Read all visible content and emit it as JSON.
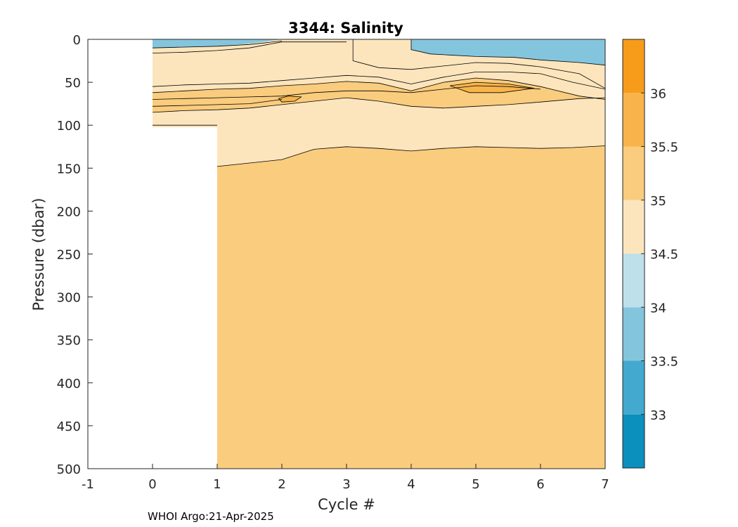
{
  "chart_data": {
    "type": "heatmap",
    "subtype": "filled-contour",
    "title": "3344:  Salinity",
    "xlabel": "Cycle #",
    "ylabel": "Pressure (dbar)",
    "xlim": [
      -1,
      7
    ],
    "ylim": [
      0,
      500
    ],
    "y_reversed": true,
    "xticks": [
      -1,
      0,
      1,
      2,
      3,
      4,
      5,
      6,
      7
    ],
    "yticks": [
      0,
      50,
      100,
      150,
      200,
      250,
      300,
      350,
      400,
      450,
      500
    ],
    "grid": false,
    "colorbar": {
      "range": [
        32.5,
        36.5
      ],
      "ticks": [
        "33",
        "33.5",
        "34",
        "34.5",
        "35",
        "35.5",
        "36"
      ],
      "bands": [
        {
          "from": 32.5,
          "to": 33.0,
          "color": "#0B8FBD"
        },
        {
          "from": 33.0,
          "to": 33.5,
          "color": "#43A9CF"
        },
        {
          "from": 33.5,
          "to": 34.0,
          "color": "#84C5DE"
        },
        {
          "from": 34.0,
          "to": 34.5,
          "color": "#BEE0EB"
        },
        {
          "from": 34.5,
          "to": 35.0,
          "color": "#FCE5BD"
        },
        {
          "from": 35.0,
          "to": 35.5,
          "color": "#FACC7D"
        },
        {
          "from": 35.5,
          "to": 36.0,
          "color": "#F8B44A"
        },
        {
          "from": 36.0,
          "to": 36.5,
          "color": "#F79C1A"
        }
      ]
    },
    "data_coverage": [
      {
        "cycle_from": 0,
        "cycle_to": 1,
        "max_pressure": 100
      },
      {
        "cycle_from": 1,
        "cycle_to": 7,
        "max_pressure": 500
      }
    ],
    "contour_levels": [
      {
        "level": 33.5,
        "points": [
          [
            0,
            10
          ],
          [
            0.5,
            9
          ],
          [
            1.0,
            8
          ],
          [
            1.5,
            6
          ],
          [
            2.0,
            2
          ]
        ]
      },
      {
        "level": 33.5,
        "points": [
          [
            4.0,
            0
          ],
          [
            4.0,
            12
          ],
          [
            4.3,
            17
          ],
          [
            5.0,
            20
          ],
          [
            5.6,
            21
          ],
          [
            6.0,
            24
          ],
          [
            6.6,
            27
          ],
          [
            7.0,
            30
          ]
        ]
      },
      {
        "level": 34.0,
        "points": [
          [
            0,
            16
          ],
          [
            0.5,
            15
          ],
          [
            1.0,
            13
          ],
          [
            1.5,
            10
          ],
          [
            2.0,
            3
          ],
          [
            2.5,
            3
          ],
          [
            3.0,
            3
          ]
        ]
      },
      {
        "level": 34.0,
        "points": [
          [
            3.1,
            0
          ],
          [
            3.1,
            25
          ],
          [
            3.5,
            33
          ],
          [
            4.0,
            35
          ],
          [
            4.5,
            31
          ],
          [
            5.0,
            27
          ],
          [
            5.5,
            28
          ],
          [
            6.0,
            32
          ],
          [
            6.6,
            40
          ],
          [
            7.0,
            57
          ]
        ]
      },
      {
        "level": 34.5,
        "points": [
          [
            0,
            55
          ],
          [
            0.5,
            53
          ],
          [
            1.0,
            52
          ],
          [
            1.5,
            51
          ],
          [
            2.0,
            48
          ],
          [
            2.5,
            45
          ],
          [
            3.0,
            42
          ],
          [
            3.5,
            44
          ],
          [
            4.0,
            52
          ],
          [
            4.5,
            44
          ],
          [
            5.0,
            38
          ],
          [
            5.5,
            38
          ],
          [
            6.0,
            40
          ],
          [
            6.5,
            50
          ],
          [
            7.0,
            58
          ]
        ]
      },
      {
        "level": 35.0,
        "points": [
          [
            0,
            62
          ],
          [
            0.5,
            60
          ],
          [
            1.0,
            58
          ],
          [
            1.5,
            57
          ],
          [
            2.0,
            54
          ],
          [
            2.5,
            52
          ],
          [
            3.0,
            49
          ],
          [
            3.5,
            51
          ],
          [
            4.0,
            60
          ],
          [
            4.5,
            50
          ],
          [
            5.0,
            45
          ],
          [
            5.5,
            48
          ],
          [
            6.0,
            55
          ],
          [
            6.6,
            66
          ],
          [
            7.0,
            70
          ]
        ]
      },
      {
        "level": 35.0,
        "points": [
          [
            0,
            100
          ],
          [
            1.0,
            100
          ]
        ]
      },
      {
        "level": 35.0,
        "points": [
          [
            1.0,
            148
          ],
          [
            1.5,
            144
          ],
          [
            2.0,
            140
          ],
          [
            2.5,
            128
          ],
          [
            3.0,
            125
          ],
          [
            3.5,
            127
          ],
          [
            4.0,
            130
          ],
          [
            4.5,
            127
          ],
          [
            5.0,
            125
          ],
          [
            5.5,
            126
          ],
          [
            6.0,
            127
          ],
          [
            6.5,
            126
          ],
          [
            7.0,
            124
          ]
        ]
      },
      {
        "level": 35.5,
        "points": [
          [
            0,
            70
          ],
          [
            0.5,
            69
          ],
          [
            1.0,
            68
          ],
          [
            1.5,
            67
          ],
          [
            2.0,
            66
          ],
          [
            2.5,
            62
          ],
          [
            3.0,
            60
          ],
          [
            3.5,
            60
          ],
          [
            4.0,
            62
          ],
          [
            4.5,
            58
          ],
          [
            5.0,
            54
          ],
          [
            5.5,
            55
          ],
          [
            6.0,
            58
          ]
        ]
      },
      {
        "level": 35.5,
        "points": [
          [
            0,
            78
          ],
          [
            0.5,
            77
          ],
          [
            1.0,
            76
          ],
          [
            1.5,
            75
          ],
          [
            2.0,
            70
          ]
        ]
      },
      {
        "level": 35.0,
        "points": [
          [
            0,
            85
          ],
          [
            0.5,
            83
          ],
          [
            1.0,
            82
          ],
          [
            1.5,
            80
          ],
          [
            2.0,
            76
          ],
          [
            2.5,
            72
          ],
          [
            3.0,
            68
          ],
          [
            3.5,
            72
          ],
          [
            4.0,
            78
          ],
          [
            4.5,
            80
          ],
          [
            5.0,
            78
          ],
          [
            5.5,
            76
          ],
          [
            6.0,
            73
          ],
          [
            6.6,
            69
          ],
          [
            7.0,
            68
          ]
        ]
      }
    ],
    "source": "WHOI Argo:21-Apr-2025"
  }
}
